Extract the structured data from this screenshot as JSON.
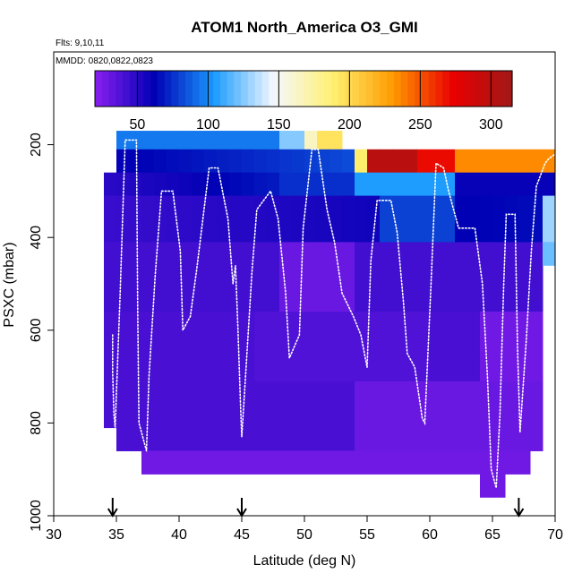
{
  "chart_data": {
    "type": "heatmap",
    "title": "ATOM1 North_America O3_GMI",
    "note_flights": "Flts: 9,10,11",
    "note_dates": "MMDD: 0820,0822,0823",
    "xlabel": "Latitude (deg N)",
    "ylabel": "PSXC (mbar)",
    "xlim": [
      30,
      70
    ],
    "ylim": [
      1000,
      0
    ],
    "x_ticks": [
      30,
      35,
      40,
      45,
      50,
      55,
      60,
      65,
      70
    ],
    "y_ticks": [
      200,
      400,
      600,
      800,
      1000
    ],
    "colorbar": {
      "range": [
        20,
        315
      ],
      "ticks": [
        50,
        100,
        150,
        200,
        250,
        300
      ],
      "colors": [
        "#8a1ff0",
        "#0000b4",
        "#1a9bff",
        "#f4f8ff",
        "#fff070",
        "#ff9a00",
        "#ea0000",
        "#a01818"
      ]
    },
    "arrows_lat": [
      34.7,
      45,
      67.1
    ],
    "grid": false,
    "flight_track": [
      [
        34.7,
        610
      ],
      [
        34.7,
        690
      ],
      [
        34.8,
        780
      ],
      [
        34.9,
        810
      ],
      [
        35.3,
        520
      ],
      [
        35.7,
        190
      ],
      [
        36.6,
        190
      ],
      [
        36.7,
        560
      ],
      [
        36.8,
        800
      ],
      [
        37.4,
        860
      ],
      [
        37.6,
        700
      ],
      [
        38.1,
        480
      ],
      [
        38.6,
        300
      ],
      [
        39.5,
        300
      ],
      [
        40.1,
        430
      ],
      [
        40.3,
        600
      ],
      [
        40.9,
        570
      ],
      [
        41.4,
        470
      ],
      [
        42.4,
        250
      ],
      [
        43.1,
        250
      ],
      [
        43.9,
        360
      ],
      [
        44.3,
        500
      ],
      [
        44.5,
        460
      ],
      [
        44.7,
        600
      ],
      [
        44.9,
        760
      ],
      [
        45.0,
        830
      ],
      [
        45.3,
        700
      ],
      [
        45.8,
        480
      ],
      [
        46.2,
        340
      ],
      [
        47.3,
        300
      ],
      [
        47.9,
        360
      ],
      [
        48.5,
        520
      ],
      [
        48.8,
        660
      ],
      [
        49.6,
        610
      ],
      [
        49.9,
        380
      ],
      [
        50.6,
        210
      ],
      [
        51.1,
        210
      ],
      [
        51.8,
        340
      ],
      [
        52.4,
        410
      ],
      [
        53.0,
        520
      ],
      [
        53.9,
        570
      ],
      [
        54.5,
        610
      ],
      [
        55.0,
        680
      ],
      [
        55.3,
        450
      ],
      [
        55.8,
        320
      ],
      [
        56.9,
        320
      ],
      [
        57.4,
        390
      ],
      [
        57.9,
        540
      ],
      [
        58.2,
        650
      ],
      [
        58.8,
        680
      ],
      [
        59.4,
        790
      ],
      [
        59.6,
        800
      ],
      [
        60.1,
        500
      ],
      [
        60.5,
        240
      ],
      [
        61.1,
        250
      ],
      [
        61.5,
        300
      ],
      [
        62.3,
        380
      ],
      [
        63.6,
        380
      ],
      [
        64.2,
        500
      ],
      [
        64.6,
        700
      ],
      [
        64.9,
        900
      ],
      [
        65.3,
        940
      ],
      [
        65.6,
        780
      ],
      [
        65.9,
        500
      ],
      [
        66.1,
        350
      ],
      [
        66.8,
        350
      ],
      [
        67.0,
        640
      ],
      [
        67.2,
        820
      ],
      [
        67.7,
        620
      ],
      [
        68.1,
        430
      ],
      [
        68.5,
        290
      ],
      [
        69.2,
        240
      ],
      [
        69.5,
        230
      ],
      [
        70.0,
        220
      ]
    ]
  }
}
